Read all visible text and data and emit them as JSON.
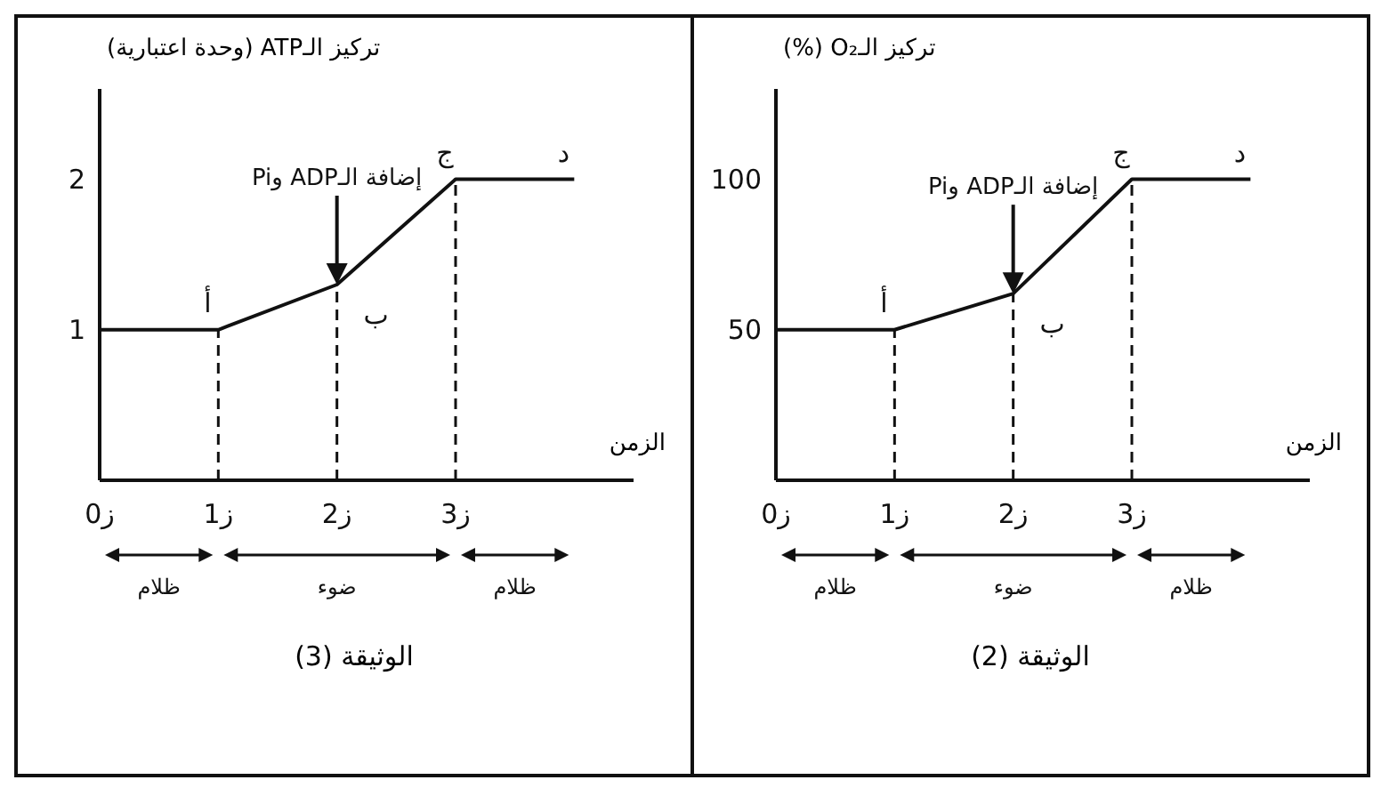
{
  "chart_data": [
    {
      "type": "line",
      "ylabel": "تركيز الـATP (وحدة اعتبارية)",
      "xlabel": "الزمن",
      "categories": [
        "ز0",
        "ز1",
        "ز2",
        "ز3",
        null
      ],
      "series": [
        {
          "color": "#111111",
          "values": [
            1,
            1,
            1.3,
            2,
            2
          ]
        }
      ],
      "ylim": [
        0,
        2.6
      ],
      "yticks": [
        1,
        2
      ],
      "ref_lines": [
        {
          "axis": "x",
          "value": "ز1",
          "line_style": "dashed"
        },
        {
          "axis": "x",
          "value": "ز2",
          "line_style": "dashed"
        },
        {
          "axis": "x",
          "value": "ز3",
          "line_style": "dashed"
        }
      ],
      "annotations": [
        {
          "text": "أ",
          "x": "ز1",
          "y": 1
        },
        {
          "text": "ب",
          "x": "ز2",
          "y": 1.3
        },
        {
          "text": "ج",
          "x": "ز3",
          "y": 2
        },
        {
          "text": "د",
          "y": 2
        },
        "إضافة الـADP وPi",
        "ظلام",
        "ضوء",
        "ظلام",
        "الوثيقة (3)"
      ]
    },
    {
      "type": "line",
      "ylabel": "تركيز الـO₂ (%)",
      "xlabel": "الزمن",
      "categories": [
        "ز0",
        "ز1",
        "ز2",
        "ز3",
        null
      ],
      "series": [
        {
          "color": "#111111",
          "values": [
            50,
            50,
            62,
            100,
            100
          ]
        }
      ],
      "ylim": [
        0,
        130
      ],
      "yticks": [
        50,
        100
      ],
      "ref_lines": [
        {
          "axis": "x",
          "value": "ز1",
          "line_style": "dashed"
        },
        {
          "axis": "x",
          "value": "ز2",
          "line_style": "dashed"
        },
        {
          "axis": "x",
          "value": "ز3",
          "line_style": "dashed"
        }
      ],
      "annotations": [
        {
          "text": "أ",
          "x": "ز1",
          "y": 50
        },
        {
          "text": "ب",
          "x": "ز2",
          "y": 62
        },
        {
          "text": "ج",
          "x": "ز3",
          "y": 100
        },
        {
          "text": "د",
          "y": 100
        },
        "إضافة الـADP وPi",
        "ظلام",
        "ضوء",
        "ظلام",
        "الوثيقة (2)"
      ]
    }
  ]
}
